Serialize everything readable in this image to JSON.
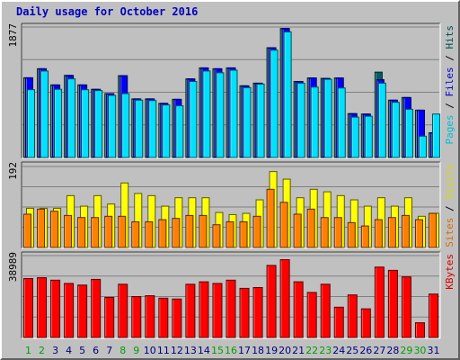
{
  "chart_data": {
    "type": "bar",
    "title": "Daily usage for October 2016",
    "categories": [
      "1",
      "2",
      "3",
      "4",
      "5",
      "6",
      "7",
      "8",
      "9",
      "10",
      "11",
      "12",
      "13",
      "14",
      "15",
      "16",
      "17",
      "18",
      "19",
      "20",
      "21",
      "22",
      "23",
      "24",
      "25",
      "26",
      "27",
      "28",
      "29",
      "30",
      "31"
    ],
    "weekend_days": [
      "1",
      "2",
      "8",
      "9",
      "15",
      "16",
      "22",
      "23",
      "29",
      "30"
    ],
    "colors": {
      "weekday_label": "#000080",
      "weekend_label": "#00a000",
      "hits": "#006060",
      "files": "#0000ff",
      "pages": "#00e0ff",
      "visits": "#ffff00",
      "sites": "#ff8000",
      "kbytes": "#ff0000"
    },
    "panels": [
      {
        "name": "top",
        "ylabel_max": "1877",
        "ylim": [
          0,
          1877
        ],
        "legend": [
          {
            "key": "hits",
            "label": "Hits"
          },
          {
            "key": "files",
            "label": "Files"
          },
          {
            "key": "pages",
            "label": "Pages"
          }
        ],
        "series": [
          {
            "key": "hits",
            "values": [
              1147,
              1277,
              1044,
              1181,
              1044,
              981,
              919,
              1177,
              843,
              843,
              779,
              837,
              1131,
              1289,
              1277,
              1289,
              1031,
              1069,
              1579,
              1856,
              1094,
              1144,
              1138,
              1144,
              631,
              625,
              1228,
              825,
              863,
              681,
              356
            ]
          },
          {
            "key": "files",
            "values": [
              1147,
              1277,
              1044,
              1181,
              1044,
              981,
              919,
              1177,
              843,
              843,
              779,
              837,
              1131,
              1289,
              1277,
              1289,
              1031,
              1069,
              1579,
              1856,
              1094,
              1144,
              1138,
              1144,
              631,
              625,
              1119,
              825,
              863,
              681,
              356
            ]
          },
          {
            "key": "pages",
            "values": [
              975,
              1244,
              981,
              1131,
              975,
              963,
              894,
              919,
              825,
              819,
              756,
              744,
              1094,
              1244,
              1219,
              1256,
              1006,
              1056,
              1544,
              1806,
              1069,
              1013,
              1125,
              1000,
              581,
              594,
              1069,
              794,
              694,
              306,
              625
            ]
          }
        ]
      },
      {
        "name": "middle",
        "ylabel_max": "192",
        "ylim": [
          0,
          192
        ],
        "legend": [
          {
            "key": "visits",
            "label": "Visits"
          },
          {
            "key": "sites",
            "label": "Sites"
          }
        ],
        "series": [
          {
            "key": "visits",
            "values": [
              93,
              93,
              93,
              123,
              98,
              123,
              103,
              153,
              128,
              123,
              98,
              118,
              118,
              118,
              83,
              78,
              81,
              113,
              180,
              162,
              118,
              138,
              132,
              123,
              113,
              98,
              118,
              98,
              118,
              74,
              81
            ]
          },
          {
            "key": "sites",
            "values": [
              79,
              91,
              86,
              76,
              71,
              71,
              74,
              74,
              61,
              61,
              66,
              69,
              76,
              76,
              54,
              61,
              61,
              74,
              138,
              107,
              79,
              91,
              71,
              71,
              59,
              51,
              66,
              71,
              76,
              66,
              81
            ]
          }
        ]
      },
      {
        "name": "bottom",
        "ylabel_max": "38989",
        "ylim": [
          0,
          38989
        ],
        "legend": [
          {
            "key": "kbytes",
            "label": "KBytes"
          }
        ],
        "series": [
          {
            "key": "kbytes",
            "values": [
              28073,
              28462,
              27293,
              25733,
              24954,
              27682,
              19106,
              25344,
              19496,
              19886,
              18716,
              18326,
              25344,
              26513,
              25733,
              27293,
              23394,
              23784,
              34310,
              37040,
              26513,
              21445,
              25344,
              14427,
              20275,
              13647,
              33530,
              31970,
              28852,
              7018,
              20665
            ]
          }
        ]
      }
    ]
  }
}
